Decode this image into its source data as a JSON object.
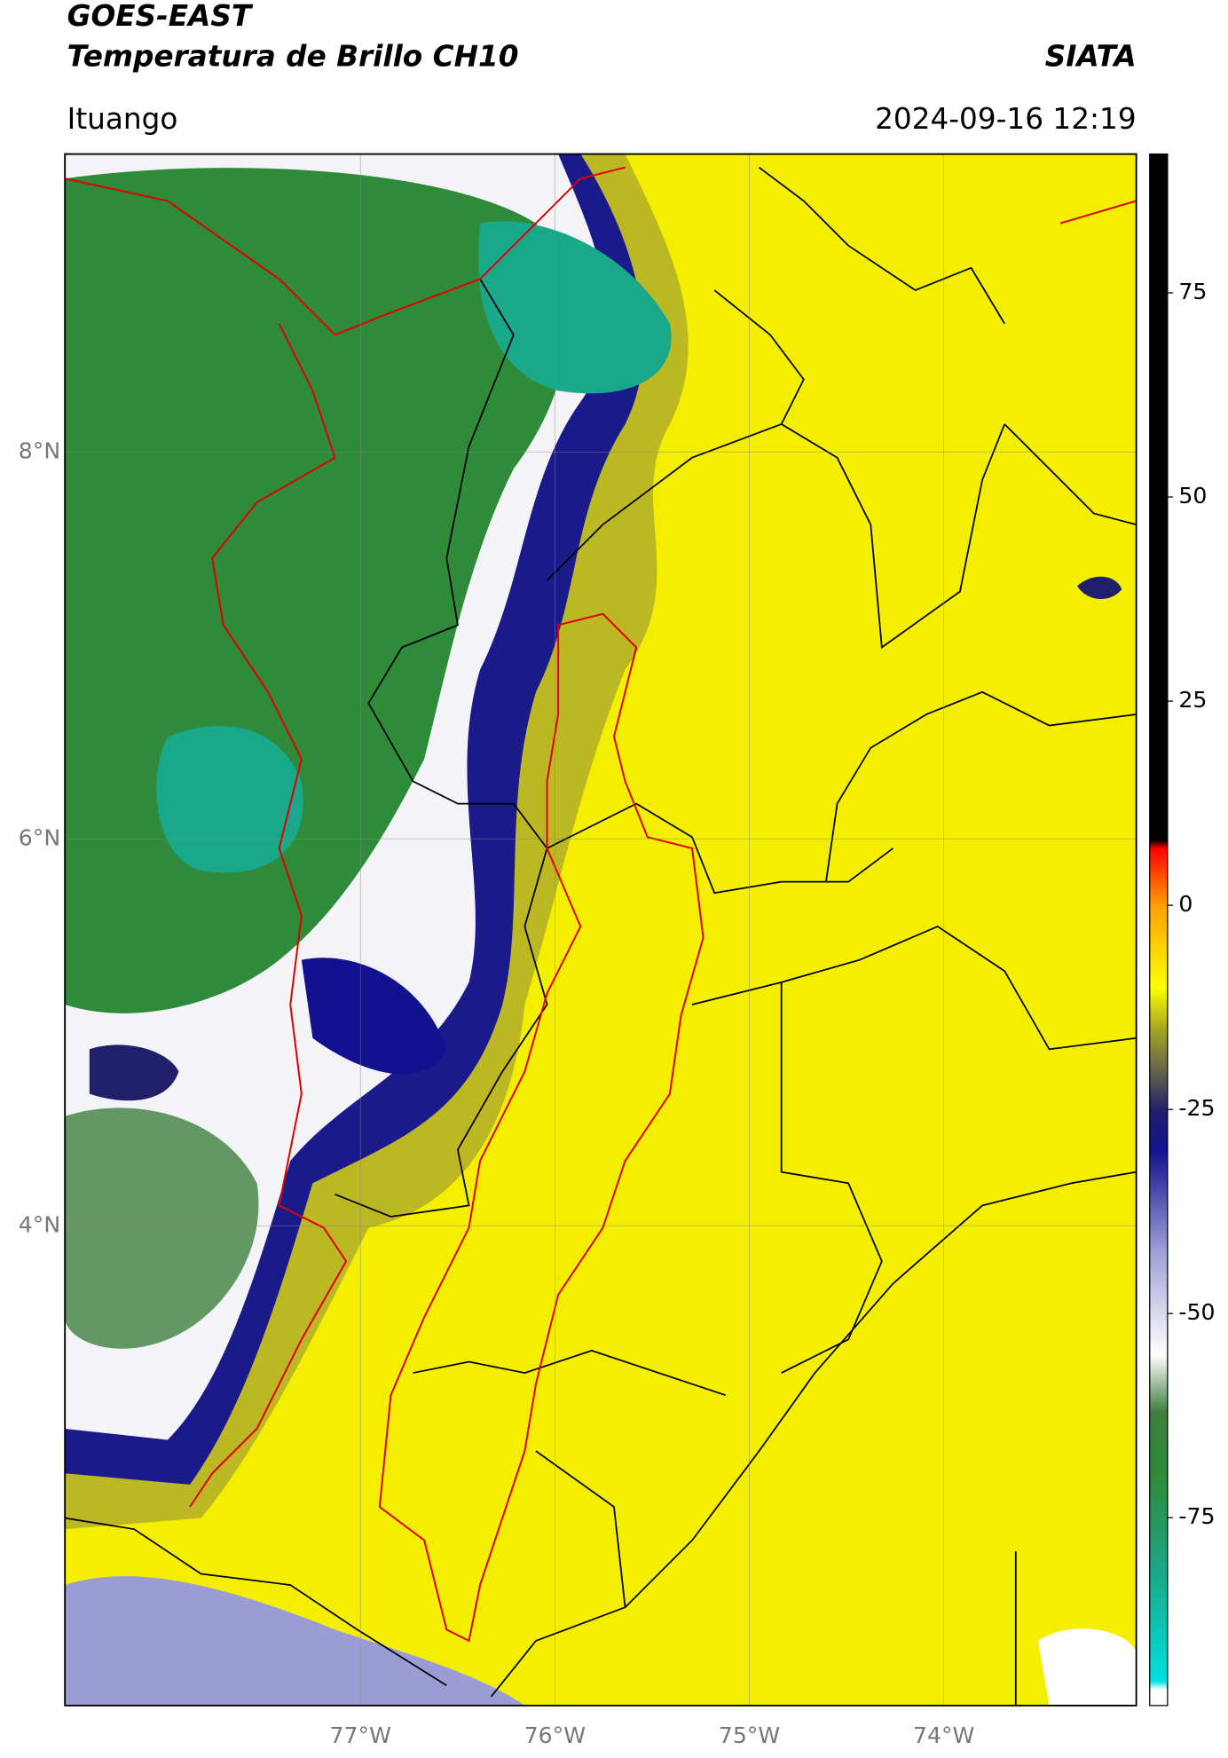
{
  "header": {
    "title": "GOES-EAST",
    "subtitle": "Temperatura de Brillo CH10",
    "source": "SIATA",
    "location": "Ituango",
    "datetime": "2024-09-16 12:19"
  },
  "map": {
    "xlim": [
      -78.52,
      -73.01
    ],
    "ylim": [
      1.52,
      9.54
    ],
    "lat_ticks": [
      {
        "value": 8,
        "label": "8°N"
      },
      {
        "value": 6,
        "label": "6°N"
      },
      {
        "value": 4,
        "label": "4°N"
      }
    ],
    "lon_ticks": [
      {
        "value": -77,
        "label": "77°W"
      },
      {
        "value": -76,
        "label": "76°W"
      },
      {
        "value": -75,
        "label": "75°W"
      },
      {
        "value": -74,
        "label": "74°W"
      }
    ]
  },
  "colorbar": {
    "lim": [
      -98,
      92
    ],
    "ticks": [
      75,
      50,
      25,
      0,
      -25,
      -50,
      -75
    ],
    "stops": [
      {
        "value": -98,
        "color": "#ffffff"
      },
      {
        "value": -96,
        "color": "#ffffff"
      },
      {
        "value": -95,
        "color": "#00e0e0"
      },
      {
        "value": -82,
        "color": "#1aa88a"
      },
      {
        "value": -70,
        "color": "#2e8b3a"
      },
      {
        "value": -62,
        "color": "#3f7f3f"
      },
      {
        "value": -55,
        "color": "#ffffff"
      },
      {
        "value": -42,
        "color": "#9c9cd4"
      },
      {
        "value": -30,
        "color": "#121290"
      },
      {
        "value": -25,
        "color": "#20206a"
      },
      {
        "value": -21,
        "color": "#5a5a50"
      },
      {
        "value": -15,
        "color": "#a8a820"
      },
      {
        "value": -10,
        "color": "#ffff00"
      },
      {
        "value": 0,
        "color": "#ffa000"
      },
      {
        "value": 7,
        "color": "#ff0000"
      },
      {
        "value": 8,
        "color": "#000000"
      },
      {
        "value": 92,
        "color": "#000000"
      }
    ]
  }
}
